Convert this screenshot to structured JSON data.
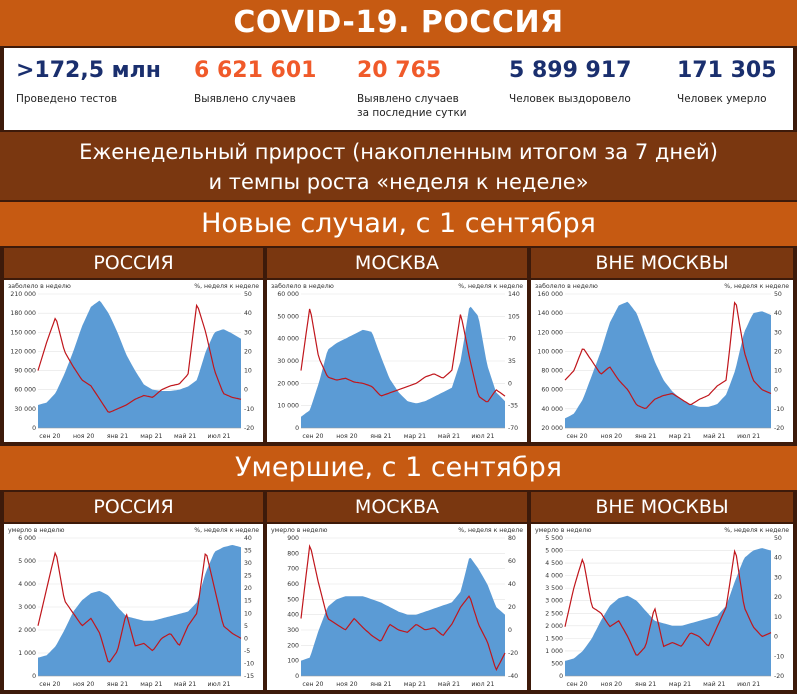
{
  "header": {
    "title": "COVID-19. РОССИЯ"
  },
  "stats": [
    {
      "value": ">172,5 млн",
      "label1": "Проведено тестов",
      "label2": "",
      "color": "#1a2f6e"
    },
    {
      "value": "6 621 601",
      "label1": "Выявлено случаев",
      "label2": "",
      "color": "#f05a2a"
    },
    {
      "value": "20 765",
      "label1": "Выявлено случаев",
      "label2": "за последние сутки",
      "color": "#f05a2a"
    },
    {
      "value": "5 899 917",
      "label1": "Человек выздоровело",
      "label2": "",
      "color": "#1a2f6e"
    },
    {
      "value": "171 305",
      "label1": "Человек умерло",
      "label2": "",
      "color": "#1a2f6e"
    }
  ],
  "subtitle": {
    "line1": "Еженедельный прирост (накопленным итогом за 7 дней)",
    "line2": "и темпы роста «неделя к неделе»"
  },
  "sections": [
    {
      "title": "Новые случаи, с 1 сентября",
      "regions": [
        "РОССИЯ",
        "МОСКВА",
        "ВНЕ МОСКВЫ"
      ]
    },
    {
      "title": "Умершие, с 1 сентября",
      "regions": [
        "РОССИЯ",
        "МОСКВА",
        "ВНЕ МОСКВЫ"
      ]
    }
  ],
  "colors": {
    "area": "#5b9bd5",
    "line": "#c0161c"
  },
  "chart_data": [
    {
      "type": "area",
      "region": "РОССИЯ",
      "measure": "Новые случаи",
      "ylabel_left": "заболело в неделю",
      "ylabel_right": "%, неделя к неделе",
      "ylim_left": [
        0,
        210000
      ],
      "yticks_left": [
        "0",
        "30 000",
        "60 000",
        "90 000",
        "120 000",
        "150 000",
        "180 000",
        "210 000"
      ],
      "ylim_right": [
        -20,
        50
      ],
      "yticks_right": [
        "-20",
        "-10",
        "0",
        "10",
        "20",
        "30",
        "40",
        "50"
      ],
      "xticks": [
        "сен 20",
        "ноя 20",
        "янв 21",
        "мар 21",
        "май 21",
        "июл 21"
      ],
      "series": [
        {
          "axis": "left",
          "values": [
            36000,
            40000,
            55000,
            85000,
            120000,
            160000,
            190000,
            200000,
            180000,
            150000,
            115000,
            90000,
            68000,
            60000,
            58000,
            58000,
            60000,
            65000,
            75000,
            120000,
            150000,
            155000,
            148000,
            140000
          ]
        },
        {
          "axis": "right",
          "values": [
            10,
            25,
            38,
            20,
            12,
            5,
            2,
            -5,
            -12,
            -10,
            -8,
            -5,
            -3,
            -4,
            0,
            2,
            3,
            8,
            45,
            30,
            10,
            -2,
            -4,
            -5
          ]
        }
      ]
    },
    {
      "type": "area",
      "region": "МОСКВА",
      "measure": "Новые случаи",
      "ylabel_left": "заболело в неделю",
      "ylabel_right": "%, неделя к неделе",
      "ylim_left": [
        0,
        60000
      ],
      "yticks_left": [
        "0",
        "10 000",
        "20 000",
        "30 000",
        "40 000",
        "50 000",
        "60 000"
      ],
      "ylim_right": [
        -70,
        140
      ],
      "yticks_right": [
        "-70",
        "-35",
        "0",
        "35",
        "70",
        "105",
        "140"
      ],
      "xticks": [
        "сен 20",
        "ноя 20",
        "янв 21",
        "мар 21",
        "май 21",
        "июл 21"
      ],
      "series": [
        {
          "axis": "left",
          "values": [
            5000,
            8000,
            20000,
            35000,
            38000,
            40000,
            42000,
            44000,
            43000,
            32000,
            22000,
            16000,
            12000,
            11000,
            12000,
            14000,
            16000,
            18000,
            30000,
            55000,
            50000,
            28000,
            16000,
            12000
          ]
        },
        {
          "axis": "right",
          "values": [
            20,
            120,
            40,
            10,
            5,
            8,
            2,
            0,
            -5,
            -20,
            -15,
            -10,
            -5,
            0,
            10,
            15,
            8,
            20,
            110,
            40,
            -20,
            -30,
            -10,
            -20
          ]
        }
      ]
    },
    {
      "type": "area",
      "region": "ВНЕ МОСКВЫ",
      "measure": "Новые случаи",
      "ylabel_left": "заболело в неделю",
      "ylabel_right": "%, неделя к неделе",
      "ylim_left": [
        20000,
        160000
      ],
      "yticks_left": [
        "20 000",
        "40 000",
        "60 000",
        "80 000",
        "100 000",
        "120 000",
        "140 000",
        "160 000"
      ],
      "ylim_right": [
        -20,
        50
      ],
      "yticks_right": [
        "-20",
        "-10",
        "0",
        "10",
        "20",
        "30",
        "40",
        "50"
      ],
      "xticks": [
        "сен 20",
        "ноя 20",
        "янв 21",
        "мар 21",
        "май 21",
        "июл 21"
      ],
      "series": [
        {
          "axis": "left",
          "values": [
            30000,
            35000,
            50000,
            75000,
            100000,
            130000,
            148000,
            152000,
            140000,
            115000,
            90000,
            70000,
            58000,
            50000,
            45000,
            42000,
            42000,
            45000,
            55000,
            80000,
            120000,
            140000,
            142000,
            138000
          ]
        },
        {
          "axis": "right",
          "values": [
            5,
            10,
            22,
            15,
            8,
            12,
            5,
            0,
            -8,
            -10,
            -5,
            -3,
            -2,
            -5,
            -8,
            -5,
            -3,
            2,
            5,
            48,
            20,
            5,
            0,
            -2
          ]
        }
      ]
    },
    {
      "type": "area",
      "region": "РОССИЯ",
      "measure": "Умершие",
      "ylabel_left": "умерло в неделю",
      "ylabel_right": "%, неделя к неделе",
      "ylim_left": [
        0,
        6000
      ],
      "yticks_left": [
        "0",
        "1 000",
        "2 000",
        "3 000",
        "4 000",
        "5 000",
        "6 000"
      ],
      "ylim_right": [
        -15,
        40
      ],
      "yticks_right": [
        "-15",
        "-10",
        "-5",
        "0",
        "5",
        "10",
        "15",
        "20",
        "25",
        "30",
        "35",
        "40"
      ],
      "xticks": [
        "сен 20",
        "ноя 20",
        "янв 21",
        "мар 21",
        "май 21",
        "июл 21"
      ],
      "series": [
        {
          "axis": "left",
          "values": [
            800,
            900,
            1300,
            2000,
            2800,
            3300,
            3600,
            3700,
            3500,
            3000,
            2600,
            2500,
            2400,
            2400,
            2500,
            2600,
            2700,
            2800,
            3200,
            4500,
            5400,
            5600,
            5700,
            5600
          ]
        },
        {
          "axis": "right",
          "values": [
            5,
            20,
            35,
            15,
            10,
            5,
            8,
            2,
            -10,
            -5,
            10,
            -3,
            -2,
            -5,
            0,
            2,
            -3,
            5,
            10,
            35,
            20,
            5,
            2,
            0
          ]
        }
      ]
    },
    {
      "type": "area",
      "region": "МОСКВА",
      "measure": "Умершие",
      "ylabel_left": "умерло в неделю",
      "ylabel_right": "%, неделя к неделе",
      "ylim_left": [
        0,
        900
      ],
      "yticks_left": [
        "0",
        "100",
        "200",
        "300",
        "400",
        "500",
        "600",
        "700",
        "800",
        "900"
      ],
      "ylim_right": [
        -40,
        80
      ],
      "yticks_right": [
        "-40",
        "-20",
        "0",
        "20",
        "40",
        "60",
        "80"
      ],
      "xticks": [
        "сен 20",
        "ноя 20",
        "янв 21",
        "мар 21",
        "май 21",
        "июл 21"
      ],
      "series": [
        {
          "axis": "left",
          "values": [
            100,
            120,
            300,
            450,
            500,
            520,
            520,
            520,
            500,
            480,
            450,
            420,
            400,
            400,
            420,
            440,
            460,
            480,
            550,
            780,
            700,
            600,
            450,
            400
          ]
        },
        {
          "axis": "right",
          "values": [
            10,
            75,
            40,
            10,
            5,
            0,
            10,
            2,
            -5,
            -10,
            5,
            0,
            -2,
            5,
            0,
            2,
            -5,
            5,
            20,
            30,
            5,
            -10,
            -35,
            -20
          ]
        }
      ]
    },
    {
      "type": "area",
      "region": "ВНЕ МОСКВЫ",
      "measure": "Умершие",
      "ylabel_left": "умерло в неделю",
      "ylabel_right": "%, неделя к неделе",
      "ylim_left": [
        0,
        5500
      ],
      "yticks_left": [
        "0",
        "500",
        "1 000",
        "1 500",
        "2 000",
        "2 500",
        "3 000",
        "3 500",
        "4 000",
        "4 500",
        "5 000",
        "5 500"
      ],
      "ylim_right": [
        -20,
        50
      ],
      "yticks_right": [
        "-20",
        "-10",
        "0",
        "10",
        "20",
        "30",
        "40",
        "50"
      ],
      "xticks": [
        "сен 20",
        "ноя 20",
        "янв 21",
        "мар 21",
        "май 21",
        "июл 21"
      ],
      "series": [
        {
          "axis": "left",
          "values": [
            600,
            700,
            1000,
            1500,
            2200,
            2800,
            3100,
            3200,
            3000,
            2600,
            2200,
            2100,
            2000,
            2000,
            2100,
            2200,
            2300,
            2400,
            2800,
            3800,
            4700,
            5000,
            5100,
            5000
          ]
        },
        {
          "axis": "right",
          "values": [
            5,
            25,
            40,
            15,
            12,
            5,
            8,
            0,
            -10,
            -5,
            15,
            -5,
            -3,
            -5,
            2,
            0,
            -5,
            5,
            15,
            45,
            15,
            5,
            0,
            2
          ]
        }
      ]
    }
  ]
}
